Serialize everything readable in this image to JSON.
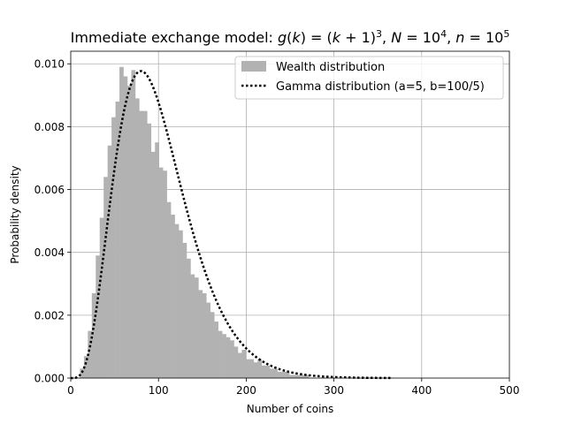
{
  "chart_data": {
    "type": "bar",
    "title_prefix": "Immediate exchange model: ",
    "title_math": [
      {
        "t": "g",
        "i": true
      },
      {
        "t": "("
      },
      {
        "t": "k",
        "i": true
      },
      {
        "t": ") = ("
      },
      {
        "t": "k",
        "i": true
      },
      {
        "t": " + 1)"
      },
      {
        "t": "3",
        "sup": true
      },
      {
        "t": ", "
      },
      {
        "t": "N",
        "i": true
      },
      {
        "t": " = 10"
      },
      {
        "t": "4",
        "sup": true
      },
      {
        "t": ", "
      },
      {
        "t": "n",
        "i": true
      },
      {
        "t": " = 10"
      },
      {
        "t": "5",
        "sup": true
      }
    ],
    "xlabel": "Number of coins",
    "ylabel": "Probability density",
    "xlim": [
      0,
      500
    ],
    "ylim": [
      0,
      0.0104
    ],
    "x_ticks": [
      0,
      100,
      200,
      300,
      400,
      500
    ],
    "x_tick_labels": [
      "0",
      "100",
      "200",
      "300",
      "400",
      "500"
    ],
    "y_ticks": [
      0,
      0.002,
      0.004,
      0.006,
      0.008,
      0.01
    ],
    "y_tick_labels": [
      "0.000",
      "0.002",
      "0.004",
      "0.006",
      "0.008",
      "0.010"
    ],
    "grid": true,
    "legend_position": "top-right",
    "legend": [
      {
        "label": "Wealth distribution",
        "style": "patch"
      },
      {
        "label": "Gamma distribution (a=5, b=100/5)",
        "style": "dotted-line"
      }
    ],
    "colors": {
      "bars": "#b2b2b2",
      "curve": "#000000",
      "grid": "#b0b0b0"
    },
    "series": [
      {
        "name": "Wealth distribution",
        "type": "histogram",
        "bin_start": 6,
        "bin_width": 4.5,
        "values": [
          0.0,
          0.0003,
          0.0007,
          0.0015,
          0.0027,
          0.0039,
          0.0051,
          0.0064,
          0.0074,
          0.0083,
          0.0088,
          0.0099,
          0.0096,
          0.0093,
          0.0098,
          0.0089,
          0.0085,
          0.0085,
          0.0081,
          0.0072,
          0.0075,
          0.0067,
          0.0066,
          0.0056,
          0.0052,
          0.0049,
          0.0047,
          0.0043,
          0.0038,
          0.0033,
          0.0032,
          0.0028,
          0.0027,
          0.0024,
          0.0021,
          0.0018,
          0.0015,
          0.0014,
          0.0013,
          0.0012,
          0.001,
          0.0008,
          0.0009,
          0.0006,
          0.0006,
          0.0005,
          0.0006,
          0.0004,
          0.0004,
          0.0003,
          0.0003,
          0.0002,
          0.0002,
          0.0002,
          0.0001,
          0.0001,
          0.0001,
          0.0001,
          0.0001,
          0.0
        ]
      },
      {
        "name": "Gamma distribution (a=5, b=100/5)",
        "type": "line",
        "shape": 5,
        "scale": 20,
        "x_range": [
          0,
          365
        ]
      }
    ]
  }
}
